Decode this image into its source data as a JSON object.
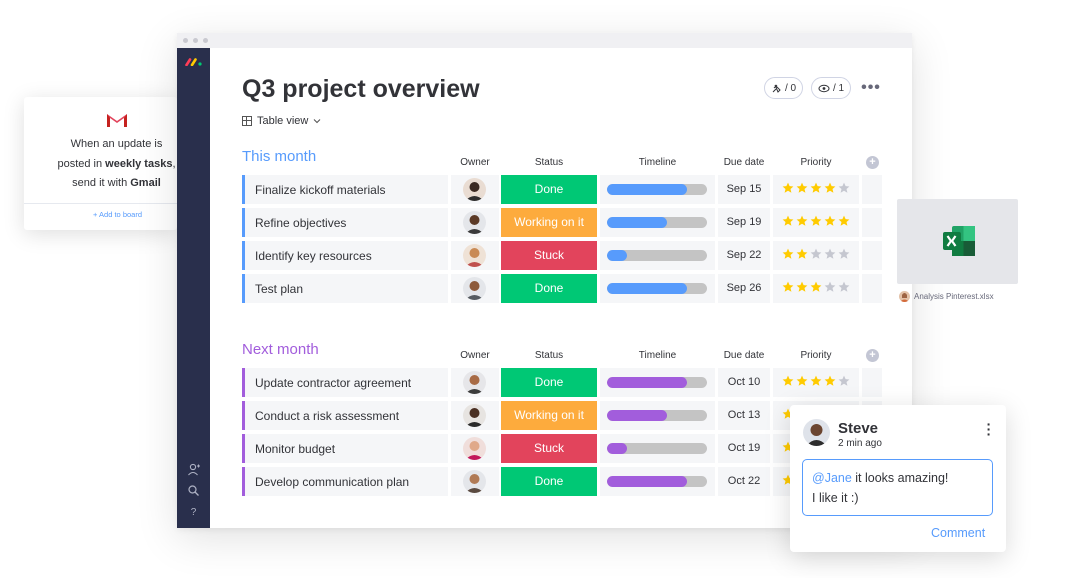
{
  "board": {
    "title": "Q3 project overview",
    "view": "Table view",
    "activity_count": "/ 0",
    "viewers_count": "/ 1"
  },
  "columns": {
    "owner": "Owner",
    "status": "Status",
    "timeline": "Timeline",
    "due_date": "Due date",
    "priority": "Priority"
  },
  "colors": {
    "this_month": "#579bfc",
    "next_month": "#a25ddc",
    "done": "#00c875",
    "working": "#fdab3d",
    "stuck": "#e2445c",
    "star_on": "#ffcb00",
    "star_off": "#c5c7d0"
  },
  "groups": [
    {
      "title": "This month",
      "color": "#579bfc",
      "rows": [
        {
          "name": "Finalize kickoff materials",
          "status": "Done",
          "status_color": "#00c875",
          "timeline_progress": 0.8,
          "due": "Sep 15",
          "priority": 4
        },
        {
          "name": "Refine objectives",
          "status": "Working on it",
          "status_color": "#fdab3d",
          "timeline_progress": 0.6,
          "due": "Sep 19",
          "priority": 5
        },
        {
          "name": "Identify key resources",
          "status": "Stuck",
          "status_color": "#e2445c",
          "timeline_progress": 0.2,
          "due": "Sep 22",
          "priority": 2
        },
        {
          "name": "Test plan",
          "status": "Done",
          "status_color": "#00c875",
          "timeline_progress": 0.8,
          "due": "Sep 26",
          "priority": 3
        }
      ]
    },
    {
      "title": "Next month",
      "color": "#a25ddc",
      "rows": [
        {
          "name": "Update contractor agreement",
          "status": "Done",
          "status_color": "#00c875",
          "timeline_progress": 0.8,
          "due": "Oct 10",
          "priority": 4
        },
        {
          "name": "Conduct a risk assessment",
          "status": "Working on it",
          "status_color": "#fdab3d",
          "timeline_progress": 0.6,
          "due": "Oct 13",
          "priority": 5
        },
        {
          "name": "Monitor budget",
          "status": "Stuck",
          "status_color": "#e2445c",
          "timeline_progress": 0.2,
          "due": "Oct 19",
          "priority": 2
        },
        {
          "name": "Develop communication plan",
          "status": "Done",
          "status_color": "#00c875",
          "timeline_progress": 0.8,
          "due": "Oct 22",
          "priority": 3
        }
      ]
    }
  ],
  "gmail_card": {
    "line1": "When an update is",
    "line2_prefix": "posted in ",
    "line2_bold": "weekly tasks",
    "line2_suffix": ",",
    "line3_prefix": "send it with ",
    "line3_bold": "Gmail",
    "action": "+ Add to board"
  },
  "excel_card": {
    "file_name": "Analysis Pinterest.xlsx"
  },
  "comment": {
    "author": "Steve",
    "time": "2 min ago",
    "mention": "@Jane",
    "text_line1": " it looks amazing!",
    "text_line2": "I like it :)",
    "button": "Comment"
  },
  "icons": {
    "sidebar": [
      "user-icon",
      "search-icon",
      "help-icon"
    ],
    "header": [
      "activity-icon",
      "eye-icon",
      "more-icon"
    ]
  }
}
